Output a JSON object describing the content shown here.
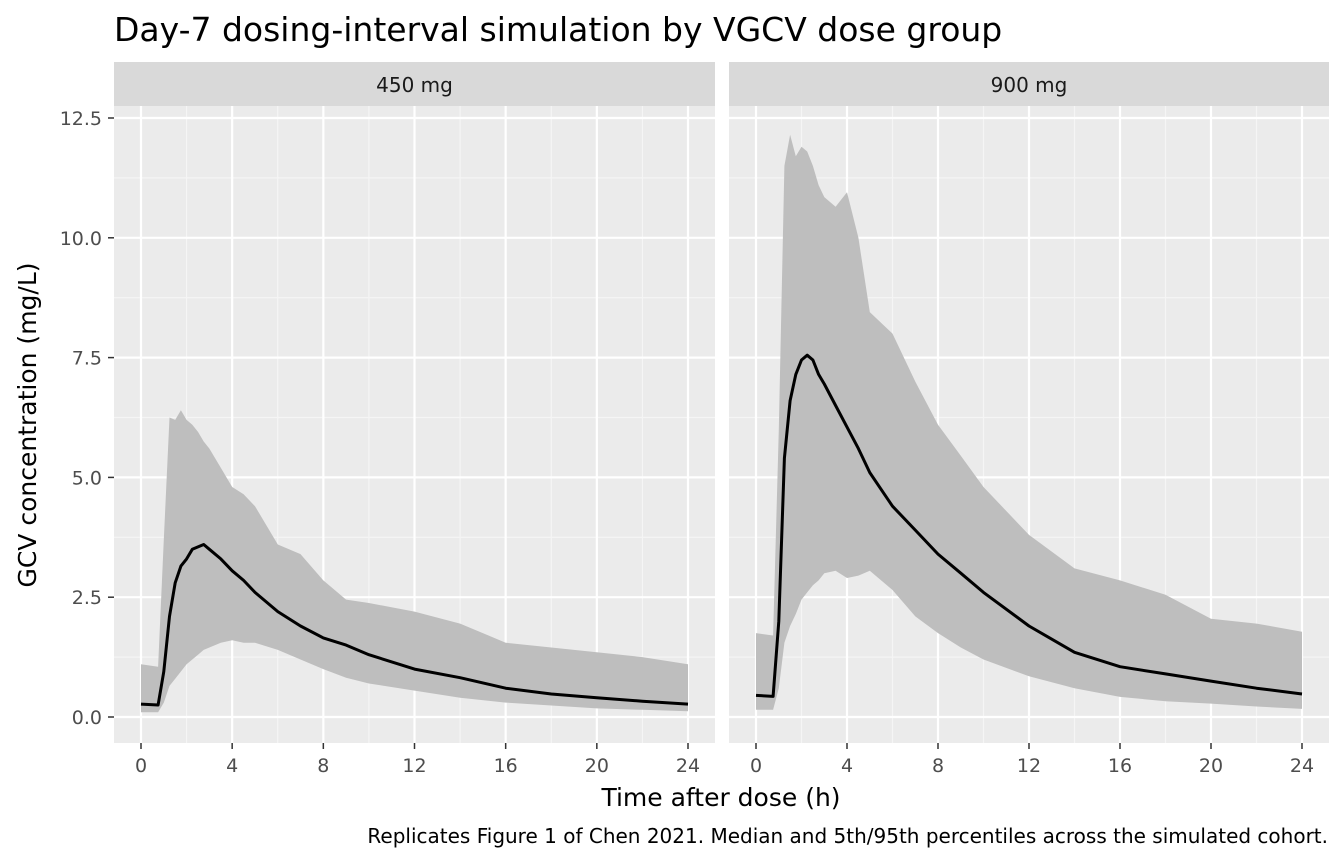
{
  "chart_data": {
    "type": "area",
    "title": "Day-7 dosing-interval simulation by VGCV dose group",
    "caption": "Replicates Figure 1 of Chen 2021. Median and 5th/95th percentiles across the simulated cohort.",
    "xlabel": "Time after dose (h)",
    "ylabel": "GCV concentration (mg/L)",
    "xlim": [
      0,
      24
    ],
    "ylim": [
      0,
      12.5
    ],
    "x_ticks": [
      0,
      4,
      8,
      12,
      16,
      20,
      24
    ],
    "y_ticks": [
      0.0,
      2.5,
      5.0,
      7.5,
      10.0,
      12.5
    ],
    "x_tick_labels": [
      "0",
      "4",
      "8",
      "12",
      "16",
      "20",
      "24"
    ],
    "y_tick_labels": [
      "0.0",
      "2.5",
      "5.0",
      "7.5",
      "10.0",
      "12.5"
    ],
    "grid": true,
    "ribbon_color": "#bebebe",
    "line_color": "#000000",
    "panel_background": "#ebebeb",
    "strip_background": "#d9d9d9",
    "facets": [
      {
        "label": "450 mg",
        "series": [
          {
            "x": [
              0,
              0.75,
              1.0,
              1.25,
              1.5,
              1.75,
              2.0,
              2.25,
              2.5,
              2.75,
              3.0,
              3.5,
              4.0,
              4.5,
              5.0,
              6.0,
              7.0,
              8.0,
              9.0,
              10.0,
              12.0,
              14.0,
              16.0,
              18.0,
              20.0,
              22.0,
              24.0
            ],
            "median": [
              0.27,
              0.25,
              0.95,
              2.1,
              2.8,
              3.15,
              3.3,
              3.5,
              3.55,
              3.6,
              3.5,
              3.3,
              3.05,
              2.85,
              2.6,
              2.2,
              1.9,
              1.65,
              1.5,
              1.3,
              1.0,
              0.82,
              0.6,
              0.48,
              0.4,
              0.33,
              0.27
            ],
            "p5": [
              0.1,
              0.1,
              0.3,
              0.65,
              0.8,
              0.95,
              1.1,
              1.2,
              1.3,
              1.4,
              1.45,
              1.55,
              1.6,
              1.55,
              1.55,
              1.4,
              1.2,
              1.0,
              0.82,
              0.7,
              0.55,
              0.4,
              0.3,
              0.24,
              0.18,
              0.15,
              0.12
            ],
            "p95": [
              1.1,
              1.05,
              3.7,
              6.25,
              6.2,
              6.4,
              6.2,
              6.1,
              5.95,
              5.75,
              5.6,
              5.2,
              4.8,
              4.65,
              4.4,
              3.6,
              3.4,
              2.85,
              2.45,
              2.38,
              2.2,
              1.95,
              1.55,
              1.45,
              1.35,
              1.25,
              1.1
            ]
          }
        ]
      },
      {
        "label": "900 mg",
        "series": [
          {
            "x": [
              0,
              0.75,
              1.0,
              1.25,
              1.5,
              1.75,
              2.0,
              2.25,
              2.5,
              2.75,
              3.0,
              3.5,
              4.0,
              4.5,
              5.0,
              6.0,
              7.0,
              8.0,
              9.0,
              10.0,
              12.0,
              14.0,
              16.0,
              18.0,
              20.0,
              22.0,
              24.0
            ],
            "median": [
              0.45,
              0.43,
              2.0,
              5.4,
              6.6,
              7.15,
              7.45,
              7.55,
              7.45,
              7.15,
              6.95,
              6.5,
              6.05,
              5.6,
              5.1,
              4.4,
              3.9,
              3.4,
              3.0,
              2.6,
              1.9,
              1.35,
              1.05,
              0.9,
              0.75,
              0.6,
              0.48
            ],
            "p5": [
              0.15,
              0.15,
              0.6,
              1.55,
              1.9,
              2.15,
              2.45,
              2.6,
              2.75,
              2.85,
              3.0,
              3.05,
              2.9,
              2.95,
              3.05,
              2.65,
              2.1,
              1.75,
              1.45,
              1.2,
              0.85,
              0.6,
              0.42,
              0.33,
              0.28,
              0.22,
              0.17
            ],
            "p95": [
              1.75,
              1.7,
              6.0,
              11.5,
              12.15,
              11.7,
              11.9,
              11.8,
              11.5,
              11.1,
              10.85,
              10.65,
              10.95,
              10.0,
              8.45,
              8.0,
              7.0,
              6.1,
              5.45,
              4.8,
              3.8,
              3.1,
              2.85,
              2.55,
              2.05,
              1.95,
              1.78
            ]
          }
        ]
      }
    ]
  }
}
